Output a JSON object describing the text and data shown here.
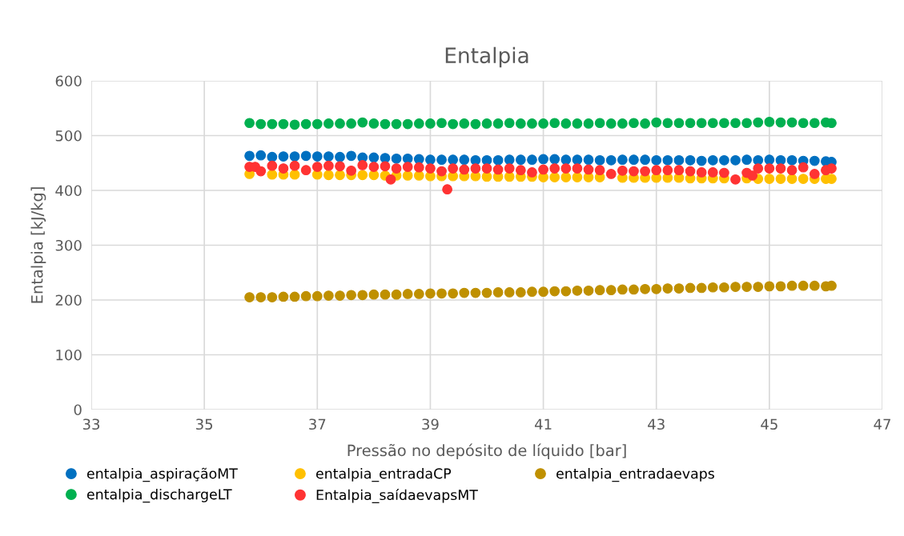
{
  "chart_data": {
    "type": "scatter",
    "title": "Entalpia",
    "xlabel": "Pressão no depósito de líquido [bar]",
    "ylabel": "Entalpia [kJ/kg]",
    "x": [
      35.8,
      36.0,
      36.2,
      36.4,
      36.6,
      36.8,
      37.0,
      37.2,
      37.4,
      37.6,
      37.8,
      38.0,
      38.2,
      38.4,
      38.6,
      38.8,
      39.0,
      39.2,
      39.4,
      39.6,
      39.8,
      40.0,
      40.2,
      40.4,
      40.6,
      40.8,
      41.0,
      41.2,
      41.4,
      41.6,
      41.8,
      42.0,
      42.2,
      42.4,
      42.6,
      42.8,
      43.0,
      43.2,
      43.4,
      43.6,
      43.8,
      44.0,
      44.2,
      44.4,
      44.6,
      44.8,
      45.0,
      45.2,
      45.4,
      45.6,
      45.8,
      46.0,
      46.1
    ],
    "series": [
      {
        "name": "entalpia_aspiraçãoMT",
        "color": "#0070c0",
        "values": [
          463,
          464,
          461,
          462,
          462,
          463,
          462,
          462,
          461,
          463,
          460,
          460,
          459,
          458,
          458,
          457,
          456,
          456,
          456,
          456,
          455,
          455,
          455,
          456,
          456,
          456,
          457,
          457,
          456,
          456,
          456,
          455,
          455,
          456,
          456,
          456,
          455,
          455,
          455,
          455,
          454,
          455,
          455,
          455,
          456,
          455,
          456,
          455,
          455,
          454,
          454,
          453,
          452
        ]
      },
      {
        "name": "entalpia_dischargeLT",
        "color": "#00b050",
        "values": [
          523,
          521,
          521,
          521,
          520,
          521,
          521,
          522,
          522,
          522,
          524,
          522,
          521,
          521,
          521,
          522,
          522,
          523,
          521,
          522,
          521,
          522,
          522,
          523,
          522,
          522,
          522,
          523,
          522,
          522,
          522,
          523,
          522,
          522,
          523,
          522,
          524,
          523,
          523,
          523,
          523,
          523,
          523,
          523,
          523,
          524,
          525,
          524,
          524,
          523,
          523,
          524,
          523
        ]
      },
      {
        "name": "entalpia_entradaCP",
        "color": "#ffc000",
        "values": [
          430,
          null,
          429,
          429,
          429,
          null,
          429,
          428,
          428,
          428,
          428,
          428,
          427,
          427,
          427,
          427,
          426,
          426,
          426,
          426,
          426,
          425,
          425,
          425,
          425,
          425,
          424,
          424,
          424,
          424,
          424,
          424,
          null,
          423,
          423,
          423,
          423,
          423,
          423,
          422,
          422,
          422,
          422,
          null,
          422,
          421,
          421,
          421,
          421,
          421,
          421,
          421,
          421
        ]
      },
      {
        "name": "Entalpia_saídaevapsMT",
        "color": "#ff3333",
        "x": [
          35.8,
          35.9,
          36.0,
          36.2,
          36.4,
          36.6,
          36.8,
          37.0,
          37.2,
          37.4,
          37.6,
          37.8,
          38.0,
          38.2,
          38.3,
          38.4,
          38.6,
          38.8,
          39.0,
          39.2,
          39.3,
          39.4,
          39.6,
          39.8,
          40.0,
          40.2,
          40.4,
          40.6,
          40.8,
          41.0,
          41.2,
          41.4,
          41.6,
          41.8,
          42.0,
          42.2,
          42.4,
          42.6,
          42.8,
          43.0,
          43.2,
          43.4,
          43.6,
          43.8,
          44.0,
          44.2,
          44.4,
          44.6,
          44.7,
          44.8,
          45.0,
          45.2,
          45.4,
          45.6,
          45.8,
          46.0,
          46.1
        ],
        "values": [
          443,
          443,
          435,
          445,
          440,
          445,
          437,
          443,
          445,
          444,
          436,
          446,
          443,
          444,
          420,
          440,
          443,
          442,
          440,
          435,
          402,
          440,
          438,
          440,
          440,
          438,
          440,
          437,
          433,
          438,
          440,
          440,
          440,
          438,
          437,
          430,
          436,
          435,
          435,
          437,
          437,
          437,
          435,
          433,
          433,
          432,
          420,
          432,
          427,
          440,
          440,
          440,
          437,
          442,
          430,
          437,
          440
        ]
      },
      {
        "name": "entalpia_entradaevaps",
        "color": "#bf9000",
        "values": [
          205,
          205,
          205,
          206,
          206,
          207,
          207,
          208,
          208,
          209,
          209,
          210,
          210,
          210,
          211,
          211,
          212,
          212,
          212,
          213,
          213,
          213,
          214,
          214,
          214,
          215,
          215,
          216,
          216,
          217,
          217,
          218,
          218,
          219,
          219,
          220,
          220,
          221,
          221,
          222,
          222,
          223,
          223,
          224,
          224,
          224,
          225,
          225,
          226,
          226,
          226,
          225,
          226
        ]
      }
    ],
    "xlim": [
      33,
      47
    ],
    "xticks": [
      33,
      35,
      37,
      39,
      41,
      43,
      45,
      47
    ],
    "ylim": [
      0,
      600
    ],
    "yticks": [
      0,
      100,
      200,
      300,
      400,
      500,
      600
    ],
    "grid": true,
    "legend": "bottom",
    "marker": "circle"
  }
}
